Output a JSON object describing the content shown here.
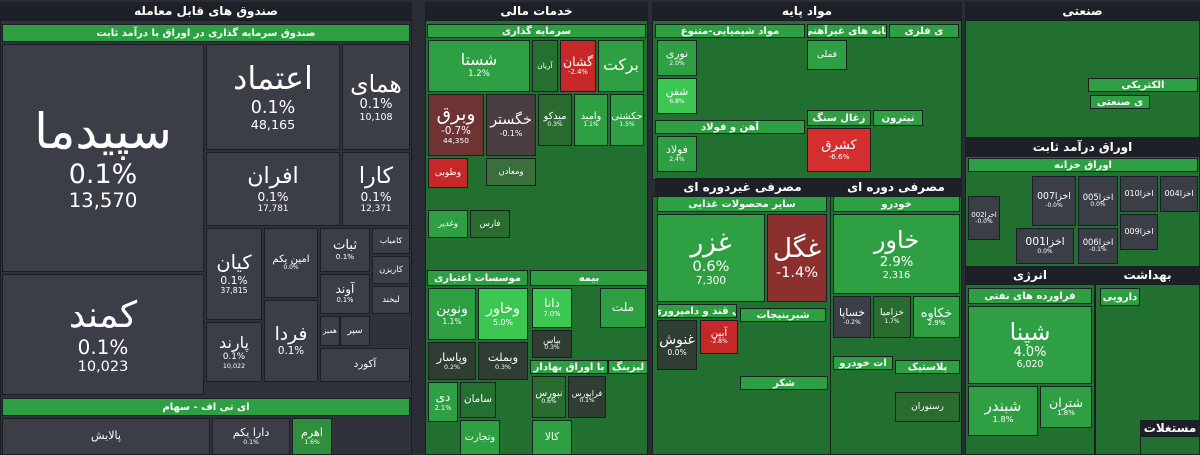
{
  "sectors": [
    {
      "title": "صندوق های قابل معامله",
      "groups": [
        {
          "title": "صندوق سرمایه گذاری در اوراق با درآمد ثابت",
          "tiles": [
            {
              "name": "سپیدما",
              "change": "0.1%",
              "volume": "13,570",
              "color": "#3b3e47"
            },
            {
              "name": "کمند",
              "change": "0.1%",
              "volume": "10,023",
              "color": "#3b3e47"
            },
            {
              "name": "اعتماد",
              "change": "0.1%",
              "volume": "48,165",
              "color": "#3b3e47"
            },
            {
              "name": "همای",
              "change": "0.1%",
              "volume": "10,108",
              "color": "#3b3e47"
            },
            {
              "name": "افران",
              "change": "0.1%",
              "volume": "17,781",
              "color": "#3b3e47"
            },
            {
              "name": "کارا",
              "change": "0.1%",
              "volume": "12,371",
              "color": "#3b3e47"
            },
            {
              "name": "کیان",
              "change": "0.1%",
              "volume": "37,815",
              "color": "#3b3e47"
            },
            {
              "name": "امین یکم",
              "change": "0.0%",
              "color": "#3b3e47"
            },
            {
              "name": "ثبات",
              "change": "0.1%",
              "color": "#3b3e47"
            },
            {
              "name": "پارند",
              "change": "0.1%",
              "volume": "10,022",
              "color": "#3b3e47"
            },
            {
              "name": "فردا",
              "change": "0.1%",
              "color": "#3b3e47"
            },
            {
              "name": "آوند",
              "change": "0.1%",
              "color": "#3b3e47"
            },
            {
              "name": "کامیاب",
              "color": "#3b3e47"
            },
            {
              "name": "کاریزن",
              "color": "#3b3e47"
            },
            {
              "name": "لبخند",
              "color": "#3b3e47"
            },
            {
              "name": "سپر",
              "color": "#3b3e47"
            },
            {
              "name": "همیز",
              "color": "#3b3e47"
            },
            {
              "name": "آکورد",
              "color": "#3b3e47"
            }
          ]
        },
        {
          "title": "ای تی اف - سهام",
          "tiles": [
            {
              "name": "پالایش",
              "color": "#3b3e47"
            },
            {
              "name": "دارا یکم",
              "change": "0.1%",
              "color": "#3b3e47"
            },
            {
              "name": "اهرم",
              "change": "1.6%",
              "color": "#2f8f3c"
            }
          ]
        }
      ]
    },
    {
      "title": "خدمات مالی",
      "groups": [
        {
          "title": "سرمایه گذاری",
          "tiles": [
            {
              "name": "شستا",
              "change": "1.2%",
              "color": "#2ea043"
            },
            {
              "name": "آریان",
              "color": "#256f30"
            },
            {
              "name": "گشان",
              "change": "-2.4%",
              "color": "#c62828"
            },
            {
              "name": "برکت",
              "color": "#2ea043"
            },
            {
              "name": "وبرق",
              "change": "-0.7%",
              "volume": "44,350",
              "color": "#6e3434"
            },
            {
              "name": "خگستر",
              "change": "-0.1%",
              "color": "#4a3f40"
            },
            {
              "name": "میدکو",
              "change": "0.3%",
              "color": "#2a6b30"
            },
            {
              "name": "وامید",
              "change": "1.1%",
              "color": "#2ea043"
            },
            {
              "name": "حکشتی",
              "change": "1.5%",
              "color": "#2ea043"
            },
            {
              "name": "وطوبی",
              "color": "#c62828"
            },
            {
              "name": "ومعادن",
              "color": "#3a6e3c"
            },
            {
              "name": "وغدیر",
              "color": "#2ea043"
            },
            {
              "name": "فارس",
              "color": "#2a6b30"
            }
          ]
        },
        {
          "title": "موسسات اعتباری",
          "tiles": [
            {
              "name": "ونوین",
              "change": "1.1%",
              "color": "#2ea043"
            },
            {
              "name": "وخاور",
              "change": "5.0%",
              "color": "#3cc753"
            },
            {
              "name": "وپاسار",
              "change": "0.2%",
              "color": "#2f3d33"
            },
            {
              "name": "وبملت",
              "change": "0.3%",
              "color": "#2f3d33"
            },
            {
              "name": "دی",
              "change": "2.1%",
              "color": "#2ea043"
            },
            {
              "name": "سامان",
              "color": "#256f30"
            },
            {
              "name": "وتجارت",
              "color": "#2ea043"
            }
          ]
        },
        {
          "title": "بیمه",
          "tiles": [
            {
              "name": "دانا",
              "change": "7.0%",
              "color": "#3cc753"
            },
            {
              "name": "ملت",
              "color": "#2ea043"
            },
            {
              "name": "بپاس",
              "change": "0.3%",
              "color": "#2f3d33"
            }
          ]
        },
        {
          "title": "با اوراق بهادار",
          "tiles": [
            {
              "name": "نبورس",
              "change": "0.6%",
              "color": "#2a6b30"
            },
            {
              "name": "فرابورس",
              "change": "0.1%",
              "color": "#2f3d33"
            },
            {
              "name": "کالا",
              "color": "#2ea043"
            }
          ]
        },
        {
          "title": "لیزینگ",
          "tiles": []
        }
      ]
    },
    {
      "title": "مواد پایه",
      "groups": [
        {
          "title": "مواد شیمیایی-متنوع",
          "tiles": [
            {
              "name": "نوری",
              "change": "2.0%",
              "color": "#2ea043"
            },
            {
              "name": "شفن",
              "change": "6.8%",
              "color": "#3cc753"
            }
          ]
        },
        {
          "title": "کانه های غیرآهنی",
          "tiles": [
            {
              "name": "فملی",
              "color": "#2ea043"
            }
          ]
        },
        {
          "title": "ی فلزی",
          "tiles": []
        },
        {
          "title": "آهن و فولاد",
          "tiles": [
            {
              "name": "فولاد",
              "change": "2.4%",
              "color": "#2ea043"
            }
          ]
        },
        {
          "title": "زغال سنگ",
          "tiles": [
            {
              "name": "کشرق",
              "change": "-6.6%",
              "color": "#d32f2f"
            }
          ]
        },
        {
          "title": "نیترون",
          "tiles": []
        }
      ]
    },
    {
      "title": "مصرفی غیردوره ای",
      "groups": [
        {
          "title": "سایر محصولات غذایی",
          "tiles": [
            {
              "name": "غزر",
              "change": "0.6%",
              "volume": "7,300",
              "color": "#2ea043"
            },
            {
              "name": "غگل",
              "change": "-1.4%",
              "color": "#8b2f2f"
            }
          ]
        },
        {
          "title": "ی قند و دامپروری",
          "tiles": [
            {
              "name": "آبین",
              "change": "-2.8%",
              "color": "#c62828"
            },
            {
              "name": "غنوش",
              "change": "0.0%",
              "color": "#2f3d33"
            }
          ]
        },
        {
          "title": "شیرینیجات",
          "tiles": []
        },
        {
          "title": "شکر",
          "tiles": []
        }
      ]
    },
    {
      "title": "مصرفی دوره ای",
      "groups": [
        {
          "title": "خودرو",
          "tiles": [
            {
              "name": "خاور",
              "change": "2.9%",
              "volume": "2,316",
              "color": "#2ea043"
            },
            {
              "name": "خساپا",
              "change": "-0.2%",
              "color": "#3b3e47"
            },
            {
              "name": "خزامیا",
              "change": "1.7%",
              "color": "#2a6b30"
            },
            {
              "name": "خکاوه",
              "change": "2.9%",
              "color": "#2ea043"
            }
          ]
        },
        {
          "title": "ات خودرو",
          "tiles": []
        },
        {
          "title": "پلاستیک",
          "tiles": [
            {
              "name": "رستوران",
              "color": "#2a6b30"
            }
          ]
        }
      ]
    },
    {
      "title": "صنعتی",
      "groups": [
        {
          "title": "ی صنعتی",
          "tiles": []
        },
        {
          "title": "الکتریکی",
          "tiles": []
        }
      ]
    },
    {
      "title": "اوراق درآمد ثابت",
      "groups": [
        {
          "title": "اوراق خزانه",
          "tiles": [
            {
              "name": "اخزا007",
              "change": "-0.0%",
              "color": "#3b3e47"
            },
            {
              "name": "اخزا005",
              "change": "0.0%",
              "color": "#3b3e47"
            },
            {
              "name": "اخزا001",
              "change": "0.0%",
              "color": "#3b3e47"
            },
            {
              "name": "اخزا006",
              "change": "-0.1%",
              "color": "#3b3e47"
            },
            {
              "name": "اخزا002",
              "change": "-0.0%",
              "color": "#3b3e47"
            },
            {
              "name": "اخزا010",
              "color": "#3b3e47"
            },
            {
              "name": "اخزا004",
              "color": "#3b3e47"
            },
            {
              "name": "اخزا009",
              "color": "#3b3e47"
            }
          ]
        }
      ]
    },
    {
      "title": "انرژی",
      "groups": [
        {
          "title": "فراورده های نفتی",
          "tiles": [
            {
              "name": "شپنا",
              "change": "4.0%",
              "volume": "6,020",
              "color": "#2ea043"
            },
            {
              "name": "شبندر",
              "change": "1.8%",
              "color": "#2ea043"
            },
            {
              "name": "شتران",
              "change": "1.8%",
              "color": "#2ea043"
            }
          ]
        }
      ]
    },
    {
      "title": "بهداشت",
      "groups": [
        {
          "title": "دارویی",
          "tiles": []
        }
      ]
    },
    {
      "title": "مستغلات",
      "groups": []
    }
  ]
}
